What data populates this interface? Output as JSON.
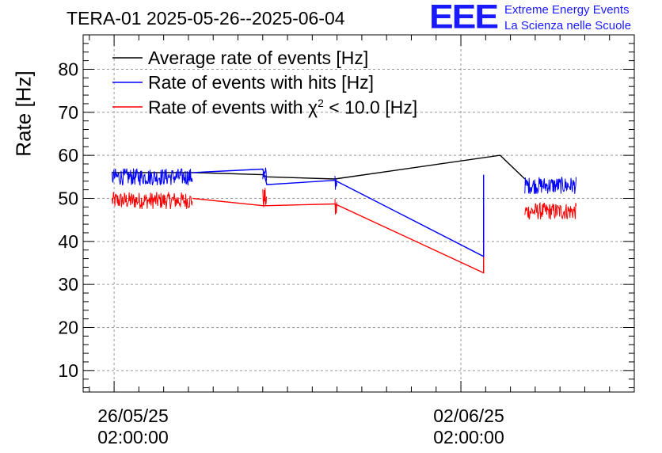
{
  "logo": {
    "mark": "EEE",
    "line1": "Extreme Energy Events",
    "line2": "La Scienza nelle Scuole"
  },
  "chart_data": {
    "type": "line",
    "title": "TERA-01 2025-05-26--2025-06-04",
    "xlabel": "",
    "ylabel": "Rate [Hz]",
    "ylim": [
      5,
      88
    ],
    "yticks": [
      10,
      20,
      30,
      40,
      50,
      60,
      70,
      80
    ],
    "xlim": [
      "2025-05-25 11:00",
      "2025-06-05 14:00"
    ],
    "xticks": [
      {
        "x": "2025-05-26 02:00",
        "label": "26/05/25\n02:00:00"
      },
      {
        "x": "2025-06-02 02:00",
        "label": "02/06/25\n02:00:00"
      }
    ],
    "grid": true,
    "legend_position": "top-left",
    "series": [
      {
        "name": "Average rate of events [Hz]",
        "color": "#000000",
        "points": [
          [
            "2025-05-26 01:00",
            56.0
          ],
          [
            "2025-05-27 16:00",
            56.0
          ],
          [
            "2025-05-29 02:00",
            55.5
          ],
          [
            "2025-05-29 04:00",
            55.0
          ],
          [
            "2025-05-30 13:00",
            54.5
          ],
          [
            "2025-06-02 21:00",
            60.0
          ],
          [
            "2025-06-03 09:00",
            54.5
          ]
        ]
      },
      {
        "name": "Rate of events with hits [Hz]",
        "color": "#0000ff",
        "noisy_segments": [
          {
            "from": "2025-05-26 01:00",
            "to": "2025-05-27 16:00",
            "mean": 55.0,
            "spread": 2.0
          },
          {
            "from": "2025-05-29 02:00",
            "to": "2025-05-29 04:00",
            "mean": 55.0,
            "spread": 2.5
          },
          {
            "from": "2025-05-30 13:00",
            "to": "2025-05-30 14:00",
            "mean": 54.0,
            "spread": 2.5
          },
          {
            "from": "2025-06-03 09:00",
            "to": "2025-06-04 10:00",
            "mean": 53.0,
            "spread": 2.0
          }
        ],
        "points": [
          [
            "2025-05-27 16:00",
            56.0
          ],
          [
            "2025-05-29 02:00",
            56.8
          ],
          [
            "2025-05-29 04:00",
            53.2
          ],
          [
            "2025-05-30 13:00",
            54.2
          ],
          [
            "2025-06-02 13:00",
            36.5
          ],
          [
            "2025-06-02 13:00",
            55.5
          ]
        ]
      },
      {
        "name": "Rate of events with χ² < 10.0 [Hz]",
        "color": "#ff0000",
        "noisy_segments": [
          {
            "from": "2025-05-26 01:00",
            "to": "2025-05-27 16:00",
            "mean": 49.5,
            "spread": 2.0
          },
          {
            "from": "2025-05-29 02:00",
            "to": "2025-05-29 04:00",
            "mean": 50.0,
            "spread": 2.5
          },
          {
            "from": "2025-05-30 13:00",
            "to": "2025-05-30 14:00",
            "mean": 47.5,
            "spread": 2.5
          },
          {
            "from": "2025-06-03 09:00",
            "to": "2025-06-04 10:00",
            "mean": 47.0,
            "spread": 2.0
          }
        ],
        "points": [
          [
            "2025-05-27 16:00",
            50.0
          ],
          [
            "2025-05-29 02:00",
            48.3
          ],
          [
            "2025-05-29 04:00",
            48.3
          ],
          [
            "2025-05-30 13:00",
            48.7
          ],
          [
            "2025-06-02 13:00",
            32.7
          ],
          [
            "2025-06-02 13:00",
            48.5
          ]
        ]
      }
    ],
    "legend": [
      {
        "label": "Average rate of events [Hz]",
        "color": "#000000"
      },
      {
        "label": "Rate of events with hits [Hz]",
        "color": "#0000ff"
      },
      {
        "label_pre": "Rate of events with ",
        "label_chi": "χ",
        "label_sup": "2",
        "label_post": " < 10.0 [Hz]",
        "color": "#ff0000"
      }
    ]
  }
}
